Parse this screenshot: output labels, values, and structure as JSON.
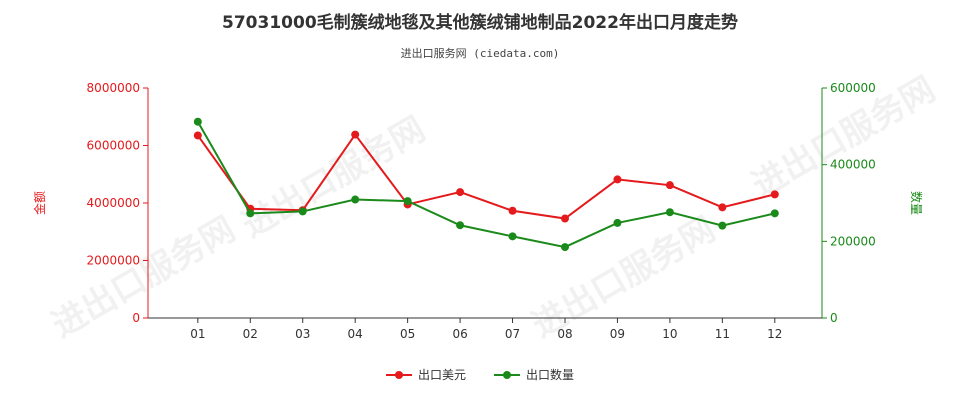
{
  "title": "57031000毛制簇绒地毯及其他簇绒铺地制品2022年出口月度走势",
  "subtitle": "进出口服务网 (ciedata.com)",
  "watermark": "进出口服务网",
  "colors": {
    "amount": "#e41a1c",
    "quantity": "#1a8a1a",
    "axis": "#333333"
  },
  "chart_data": {
    "type": "line",
    "categories": [
      "01",
      "02",
      "03",
      "04",
      "05",
      "06",
      "07",
      "08",
      "09",
      "10",
      "11",
      "12"
    ],
    "y_left": {
      "label": "金额",
      "ylim": [
        0,
        8000000
      ],
      "ticks": [
        "0",
        "2000000",
        "4000000",
        "6000000",
        "8000000"
      ]
    },
    "y_right": {
      "label": "数量",
      "ylim": [
        0,
        600000
      ],
      "ticks": [
        "0",
        "200000",
        "400000",
        "600000"
      ]
    },
    "series": [
      {
        "name": "出口美元",
        "axis": "left",
        "values": [
          6350000,
          3800000,
          3750000,
          6380000,
          3950000,
          4380000,
          3730000,
          3460000,
          4820000,
          4620000,
          3850000,
          4300000
        ]
      },
      {
        "name": "出口数量",
        "axis": "right",
        "values": [
          512000,
          273000,
          278000,
          309000,
          305000,
          242000,
          213000,
          185000,
          248000,
          276000,
          241000,
          273000
        ]
      }
    ],
    "legend_position": "bottom-center",
    "grid": false
  }
}
